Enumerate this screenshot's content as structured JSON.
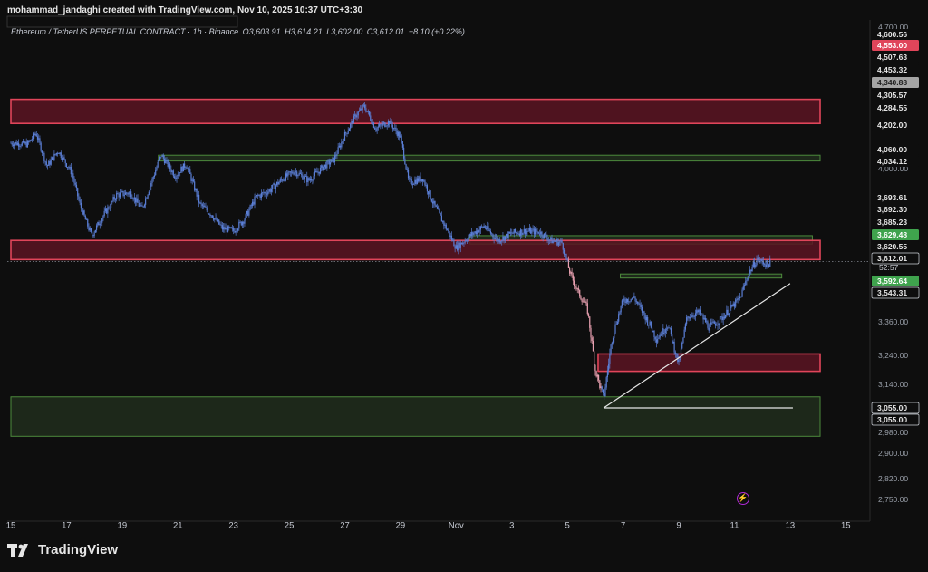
{
  "header": {
    "credit": "mohammad_jandaghi created with TradingView.com, Nov 10, 2025 10:37 UTC+3:30",
    "symbol": "Ethereum / TetherUS PERPETUAL CONTRACT · 1h · Binance",
    "open": "O3,603.91",
    "high": "H3,614.21",
    "low": "L3,602.00",
    "close": "C3,612.01",
    "change": "+8.10 (+0.22%)"
  },
  "brand": {
    "name": "TradingView"
  },
  "colors": {
    "background": "#0e0e0e",
    "candle": "#5b7fd6",
    "candle_red_zone": "#e8a0b0",
    "red_zone_fill": "#5a1422",
    "red_zone_border": "#e0455a",
    "green_zone_fill": "#22301e",
    "green_zone_border": "#4c8a3c",
    "trendline": "#e6e6e6"
  },
  "chart_data": {
    "type": "candlestick",
    "title": "",
    "xlabel": "",
    "ylabel": "",
    "ylim": [
      2700,
      4700
    ],
    "x_ticks": [
      "15",
      "17",
      "19",
      "21",
      "23",
      "25",
      "27",
      "29",
      "Nov",
      "3",
      "5",
      "7",
      "9",
      "11",
      "13",
      "15"
    ],
    "y_ticks": [
      2750,
      2820,
      2900,
      2980,
      3140,
      3240,
      3360,
      4000,
      4700
    ],
    "price_labels": [
      {
        "value": 4600.56,
        "text": "4,600.56",
        "style": "plain"
      },
      {
        "value": 4553.0,
        "text": "4,553.00",
        "style": "red"
      },
      {
        "value": 4507.63,
        "text": "4,507.63",
        "style": "plain"
      },
      {
        "value": 4453.32,
        "text": "4,453.32",
        "style": "plain"
      },
      {
        "value": 4340.88,
        "text": "4,340.88",
        "style": "gray"
      },
      {
        "value": 4305.57,
        "text": "4,305.57",
        "style": "plain"
      },
      {
        "value": 4284.55,
        "text": "4,284.55",
        "style": "plain"
      },
      {
        "value": 4202.0,
        "text": "4,202.00",
        "style": "plain"
      },
      {
        "value": 4060.0,
        "text": "4,060.00",
        "style": "plain"
      },
      {
        "value": 4034.12,
        "text": "4,034.12",
        "style": "plain"
      },
      {
        "value": 3693.61,
        "text": "3,693.61",
        "style": "plain"
      },
      {
        "value": 3692.3,
        "text": "3,692.30",
        "style": "plain"
      },
      {
        "value": 3685.23,
        "text": "3,685.23",
        "style": "plain"
      },
      {
        "value": 3629.48,
        "text": "3,629.48",
        "style": "green"
      },
      {
        "value": 3620.55,
        "text": "3,620.55",
        "style": "plain"
      },
      {
        "value": 3612.01,
        "text": "3,612.01",
        "style": "last"
      },
      {
        "value": 3592.64,
        "text": "3,592.64",
        "style": "green"
      },
      {
        "value": 3543.31,
        "text": "3,543.31",
        "style": "boxed"
      },
      {
        "value": 3055.0,
        "text": "3,055.00",
        "style": "boxed"
      },
      {
        "value": 3055.0,
        "text": "3,055.00",
        "style": "boxed"
      }
    ],
    "countdown": "52:57",
    "current_price": 3612.01,
    "zones": [
      {
        "kind": "supply",
        "from_day": 0,
        "to_day": 29.3,
        "low": 4202,
        "high": 4310
      },
      {
        "kind": "demand",
        "from_day": 5.3,
        "to_day": 29.5,
        "low": 4034,
        "high": 4060
      },
      {
        "kind": "demand",
        "from_day": 16.5,
        "to_day": 28.8,
        "low": 3685,
        "high": 3720
      },
      {
        "kind": "supply",
        "from_day": 0,
        "to_day": 29.2,
        "low": 3620,
        "high": 3700
      },
      {
        "kind": "demand",
        "from_day": 21.9,
        "to_day": 27.7,
        "low": 3543,
        "high": 3560
      },
      {
        "kind": "supply",
        "from_day": 21.1,
        "to_day": 30.8,
        "low": 3185,
        "high": 3245
      },
      {
        "kind": "demand",
        "from_day": 0,
        "to_day": 31.5,
        "low": 2965,
        "high": 3095
      }
    ],
    "trendlines": [
      {
        "from": [
          21.3,
          3055
        ],
        "to": [
          28.0,
          3520
        ]
      },
      {
        "from": [
          21.3,
          3055
        ],
        "to": [
          28.1,
          3055
        ]
      }
    ],
    "price_path": [
      [
        0,
        4115
      ],
      [
        0.6,
        4110
      ],
      [
        0.9,
        4160
      ],
      [
        1.3,
        4010
      ],
      [
        1.7,
        4080
      ],
      [
        2.2,
        3980
      ],
      [
        2.5,
        3840
      ],
      [
        2.9,
        3720
      ],
      [
        3.3,
        3800
      ],
      [
        3.8,
        3890
      ],
      [
        4.3,
        3900
      ],
      [
        4.7,
        3830
      ],
      [
        5.1,
        3960
      ],
      [
        5.4,
        4060
      ],
      [
        5.9,
        3970
      ],
      [
        6.3,
        4020
      ],
      [
        6.8,
        3850
      ],
      [
        7.2,
        3810
      ],
      [
        7.6,
        3750
      ],
      [
        8.0,
        3740
      ],
      [
        8.4,
        3790
      ],
      [
        8.8,
        3880
      ],
      [
        9.3,
        3910
      ],
      [
        9.8,
        3960
      ],
      [
        10.2,
        3990
      ],
      [
        10.7,
        3950
      ],
      [
        11.2,
        4005
      ],
      [
        11.6,
        4040
      ],
      [
        12.0,
        4150
      ],
      [
        12.4,
        4240
      ],
      [
        12.7,
        4280
      ],
      [
        13.1,
        4180
      ],
      [
        13.6,
        4210
      ],
      [
        14.0,
        4140
      ],
      [
        14.3,
        3940
      ],
      [
        14.8,
        3960
      ],
      [
        15.2,
        3850
      ],
      [
        15.6,
        3760
      ],
      [
        16.0,
        3670
      ],
      [
        16.5,
        3720
      ],
      [
        17.0,
        3760
      ],
      [
        17.5,
        3700
      ],
      [
        18.0,
        3730
      ],
      [
        18.5,
        3740
      ],
      [
        19.0,
        3735
      ],
      [
        19.4,
        3700
      ],
      [
        19.8,
        3690
      ],
      [
        20.1,
        3560
      ],
      [
        20.4,
        3480
      ],
      [
        20.7,
        3420
      ],
      [
        21.0,
        3190
      ],
      [
        21.3,
        3090
      ],
      [
        21.6,
        3300
      ],
      [
        22.0,
        3450
      ],
      [
        22.4,
        3460
      ],
      [
        22.8,
        3380
      ],
      [
        23.2,
        3300
      ],
      [
        23.6,
        3350
      ],
      [
        24.0,
        3210
      ],
      [
        24.3,
        3380
      ],
      [
        24.7,
        3400
      ],
      [
        25.1,
        3340
      ],
      [
        25.5,
        3370
      ],
      [
        25.9,
        3420
      ],
      [
        26.2,
        3460
      ],
      [
        26.5,
        3560
      ],
      [
        26.8,
        3620
      ],
      [
        27.2,
        3600
      ],
      [
        27.3,
        3612.01
      ]
    ]
  }
}
